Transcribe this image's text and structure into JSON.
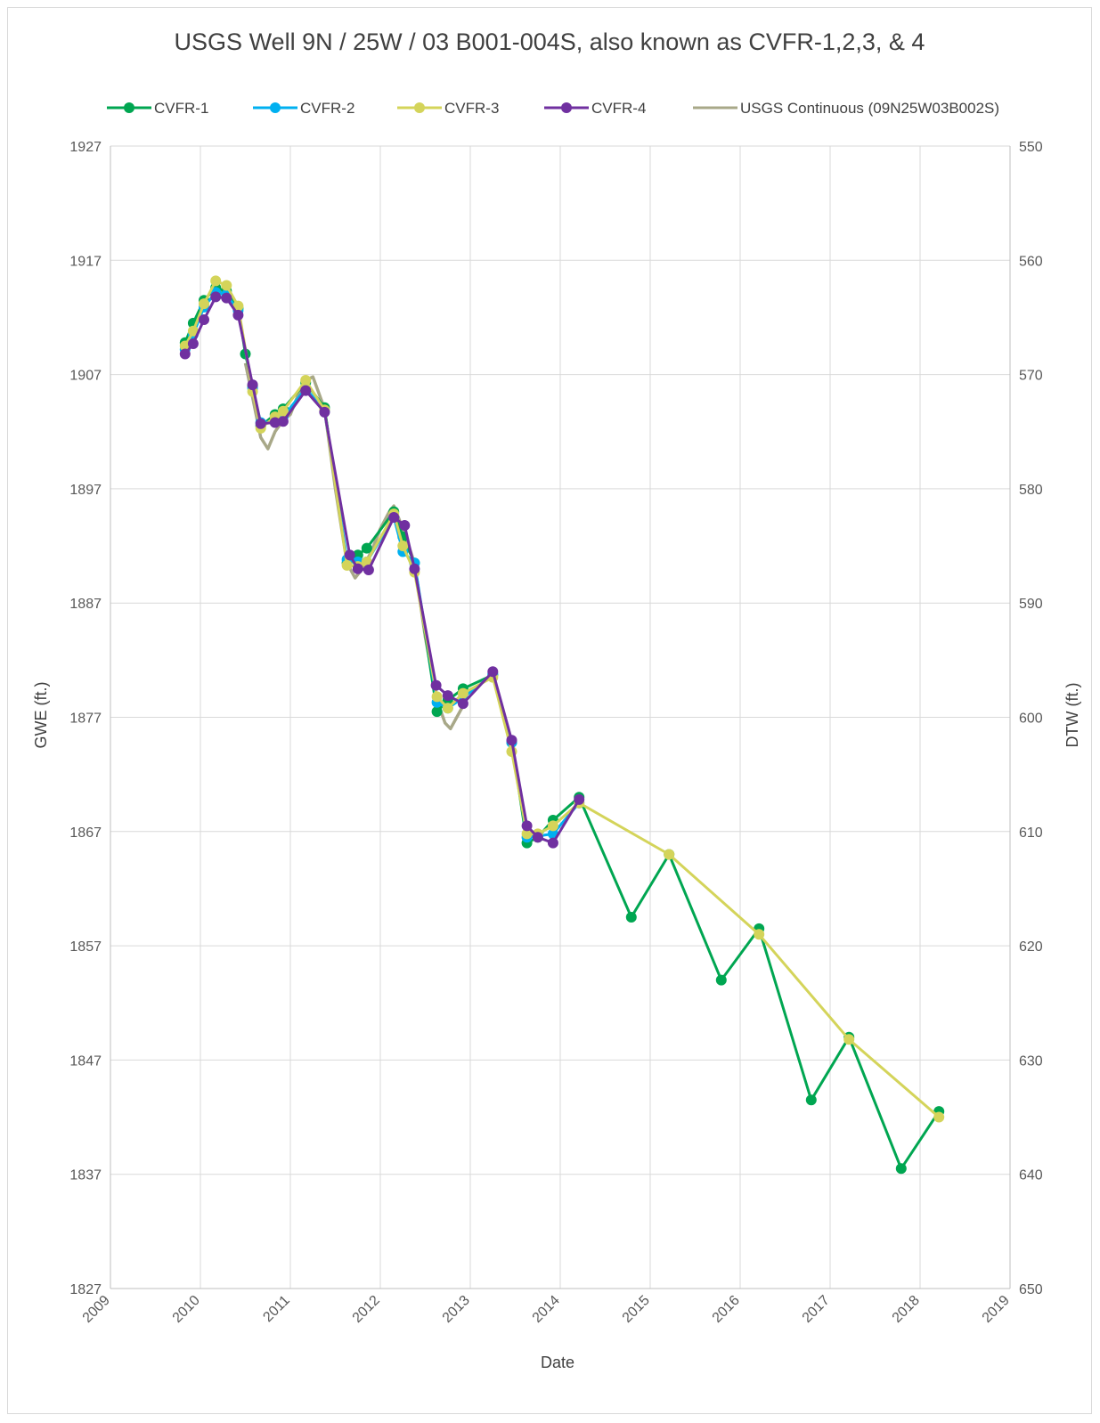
{
  "chart_data": {
    "type": "line",
    "title": "USGS Well 9N / 25W / 03 B001-004S, also known as CVFR-1,2,3, & 4",
    "xlabel": "Date",
    "ylabel": "GWE (ft.)",
    "y2label": "DTW (ft.)",
    "xlim": [
      2009,
      2019
    ],
    "ylim": [
      1827,
      1927
    ],
    "y2lim": [
      650,
      550
    ],
    "y2_reversed": true,
    "x_ticks": [
      "2009",
      "2010",
      "2011",
      "2012",
      "2013",
      "2014",
      "2015",
      "2016",
      "2017",
      "2018",
      "2019"
    ],
    "y_ticks": [
      "1827",
      "1837",
      "1847",
      "1857",
      "1867",
      "1877",
      "1887",
      "1897",
      "1907",
      "1917",
      "1927"
    ],
    "y2_ticks": [
      "650",
      "640",
      "630",
      "620",
      "610",
      "600",
      "590",
      "580",
      "570",
      "560",
      "550"
    ],
    "grid": true,
    "legend_position": "top",
    "series": [
      {
        "name": "CVFR-1",
        "color": "#00a651",
        "marker": true,
        "x": [
          2009.83,
          2009.92,
          2010.04,
          2010.17,
          2010.29,
          2010.42,
          2010.5,
          2010.58,
          2010.67,
          2010.83,
          2010.92,
          2011.17,
          2011.38,
          2011.63,
          2011.75,
          2011.85,
          2012.15,
          2012.25,
          2012.38,
          2012.63,
          2012.75,
          2012.92,
          2013.25,
          2013.46,
          2013.63,
          2013.75,
          2013.92,
          2014.21,
          2014.79,
          2015.21,
          2015.79,
          2016.21,
          2016.79,
          2017.21,
          2017.79,
          2018.21
        ],
        "y": [
          1909.8,
          1911.5,
          1913.5,
          1914.6,
          1914.3,
          1912.8,
          1908.8,
          1906.0,
          1902.5,
          1903.5,
          1904.0,
          1906.3,
          1904.1,
          1890.5,
          1891.2,
          1891.8,
          1895.0,
          1892.8,
          1890.5,
          1877.5,
          1878.5,
          1879.5,
          1880.7,
          1874.8,
          1866.0,
          1866.5,
          1868.0,
          1870.0,
          1859.5,
          1865.0,
          1854.0,
          1858.5,
          1843.5,
          1849.0,
          1837.5,
          1842.5
        ]
      },
      {
        "name": "CVFR-2",
        "color": "#00b0f0",
        "marker": true,
        "x": [
          2009.83,
          2009.92,
          2010.04,
          2010.17,
          2010.29,
          2010.42,
          2010.58,
          2010.67,
          2010.83,
          2010.92,
          2011.17,
          2011.38,
          2011.63,
          2011.75,
          2011.85,
          2012.15,
          2012.25,
          2012.38,
          2012.63,
          2012.75,
          2012.92,
          2013.25,
          2013.46,
          2013.63,
          2013.75,
          2013.92,
          2014.21
        ],
        "y": [
          1909.2,
          1910.5,
          1912.9,
          1914.2,
          1914.0,
          1912.6,
          1905.8,
          1902.8,
          1902.9,
          1903.3,
          1905.8,
          1903.8,
          1890.8,
          1890.6,
          1890.6,
          1894.5,
          1891.5,
          1890.5,
          1878.3,
          1877.8,
          1878.7,
          1880.8,
          1874.8,
          1866.5,
          1866.6,
          1866.8,
          1869.5
        ]
      },
      {
        "name": "CVFR-3",
        "color": "#d4d45a",
        "marker": true,
        "x": [
          2009.83,
          2009.92,
          2010.04,
          2010.17,
          2010.29,
          2010.42,
          2010.58,
          2010.67,
          2010.83,
          2010.92,
          2011.17,
          2011.38,
          2011.63,
          2011.75,
          2011.85,
          2012.15,
          2012.25,
          2012.38,
          2012.63,
          2012.75,
          2012.92,
          2013.25,
          2013.46,
          2013.63,
          2013.75,
          2013.92,
          2014.21,
          2015.21,
          2016.21,
          2017.21,
          2018.21
        ],
        "y": [
          1909.5,
          1910.8,
          1913.2,
          1915.2,
          1914.8,
          1913.0,
          1905.5,
          1902.3,
          1903.3,
          1903.8,
          1906.5,
          1903.9,
          1890.3,
          1890.2,
          1890.6,
          1894.8,
          1892.0,
          1889.7,
          1878.8,
          1877.8,
          1879.1,
          1880.5,
          1874.0,
          1866.8,
          1866.8,
          1867.5,
          1869.5,
          1865.0,
          1858.0,
          1848.8,
          1842.0
        ]
      },
      {
        "name": "CVFR-4",
        "color": "#7030a0",
        "marker": true,
        "x": [
          2009.83,
          2009.92,
          2010.04,
          2010.17,
          2010.29,
          2010.42,
          2010.58,
          2010.67,
          2010.83,
          2010.92,
          2011.17,
          2011.38,
          2011.66,
          2011.75,
          2011.87,
          2012.15,
          2012.27,
          2012.38,
          2012.62,
          2012.75,
          2012.92,
          2013.25,
          2013.46,
          2013.63,
          2013.75,
          2013.92,
          2014.21
        ],
        "y": [
          1908.8,
          1909.7,
          1911.8,
          1913.8,
          1913.7,
          1912.2,
          1906.1,
          1902.7,
          1902.8,
          1902.9,
          1905.6,
          1903.7,
          1891.2,
          1890.0,
          1889.9,
          1894.5,
          1893.8,
          1890.0,
          1879.8,
          1878.9,
          1878.2,
          1881.0,
          1875.0,
          1867.5,
          1866.5,
          1866.0,
          1869.8
        ]
      },
      {
        "name": "USGS Continuous (09N25W03B002S)",
        "color": "#a8a888",
        "marker": false,
        "x": [
          2010.5,
          2010.58,
          2010.67,
          2010.75,
          2010.83,
          2010.92,
          2011.0,
          2011.1,
          2011.17,
          2011.25,
          2011.38,
          2011.5,
          2011.63,
          2011.72,
          2011.8,
          2011.9,
          2012.0,
          2012.1,
          2012.15,
          2012.25,
          2012.38,
          2012.5,
          2012.63,
          2012.72,
          2012.78,
          2012.85,
          2012.92
        ],
        "y": [
          1908.0,
          1905.0,
          1901.5,
          1900.5,
          1902.0,
          1903.0,
          1903.5,
          1905.5,
          1906.5,
          1906.8,
          1904.0,
          1897.0,
          1890.5,
          1889.2,
          1890.0,
          1891.5,
          1893.5,
          1895.0,
          1895.5,
          1893.5,
          1890.5,
          1884.0,
          1878.5,
          1876.5,
          1876.0,
          1877.0,
          1878.0
        ]
      }
    ]
  }
}
